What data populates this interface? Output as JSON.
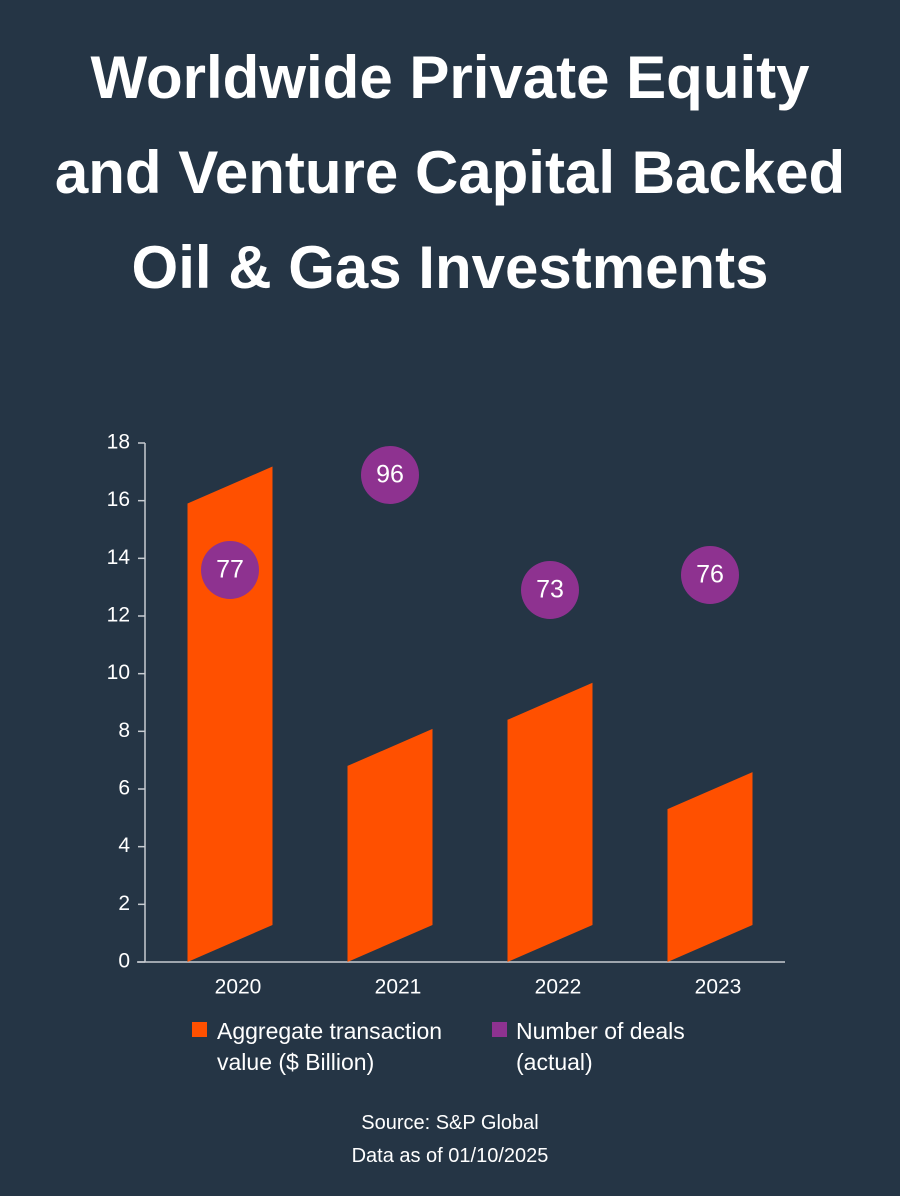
{
  "chart_data": {
    "type": "bar",
    "title": "Worldwide Private Equity and Venture Capital Backed Oil & Gas Investments",
    "categories": [
      "2020",
      "2021",
      "2022",
      "2023"
    ],
    "series": [
      {
        "name": "Aggregate transaction value ($ Billion)",
        "color": "#ff5000",
        "values": [
          15.9,
          6.8,
          8.4,
          5.3
        ]
      },
      {
        "name": "Number of deals (actual)",
        "color": "#8e3290",
        "values": [
          77,
          96,
          73,
          76
        ]
      }
    ],
    "ylim": [
      0,
      18
    ],
    "yticks": [
      0,
      2,
      4,
      6,
      8,
      10,
      12,
      14,
      16,
      18
    ],
    "source": [
      "Source: S&P Global",
      "Data as of 01/10/2025"
    ]
  }
}
